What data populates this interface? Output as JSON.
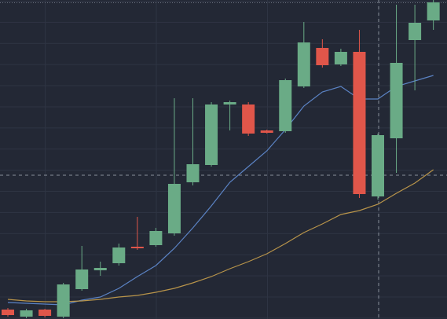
{
  "chart_data": {
    "type": "candlestick",
    "ylim": [
      0,
      406
    ],
    "up_color": "#6aab86",
    "down_color": "#e0564a",
    "open": [
      12,
      3,
      12,
      3,
      38,
      62,
      71,
      92,
      94,
      109,
      174,
      196,
      273,
      273,
      240,
      239,
      296,
      345,
      324,
      340,
      156,
      230,
      355,
      380
    ],
    "high": [
      14,
      13,
      13,
      46,
      93,
      73,
      96,
      130,
      116,
      281,
      281,
      276,
      278,
      276,
      241,
      306,
      378,
      356,
      344,
      368,
      236,
      400,
      400,
      406
    ],
    "low": [
      3,
      1,
      2,
      1,
      36,
      55,
      68,
      88,
      92,
      106,
      170,
      194,
      240,
      233,
      236,
      237,
      294,
      320,
      322,
      154,
      152,
      186,
      291,
      368
    ],
    "close": [
      5,
      11,
      4,
      44,
      63,
      65,
      91,
      90,
      112,
      172,
      197,
      273,
      276,
      236,
      237,
      304,
      352,
      323,
      340,
      159,
      234,
      326,
      377,
      403
    ],
    "lines": [
      {
        "color": "#5b83c4",
        "values": [
          21,
          20,
          19,
          18,
          24,
          28,
          39,
          54,
          68,
          90,
          116,
          144,
          174,
          194,
          214,
          241,
          271,
          289,
          296,
          280,
          280,
          296,
          303,
          310
        ]
      },
      {
        "color": "#b8944a",
        "values": [
          25,
          23,
          22,
          22,
          23,
          25,
          28,
          30,
          34,
          39,
          46,
          54,
          64,
          73,
          83,
          96,
          110,
          121,
          133,
          138,
          146,
          160,
          173,
          190
        ]
      }
    ]
  }
}
